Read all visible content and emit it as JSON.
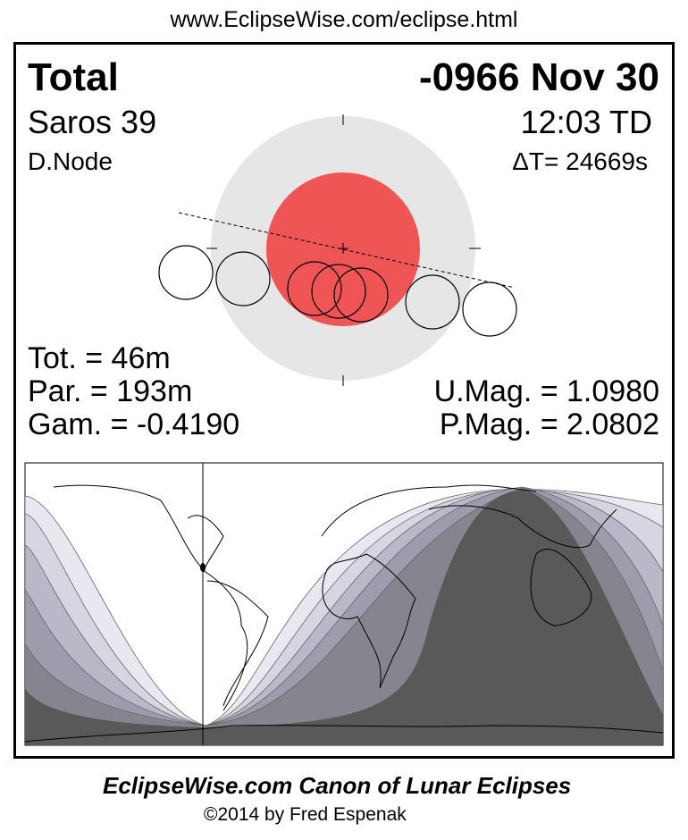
{
  "header": {
    "url": "www.EclipseWise.com/eclipse.html"
  },
  "eclipse": {
    "type": "Total",
    "date": "-0966 Nov 30",
    "saros": "Saros  39",
    "time": "12:03 TD",
    "node": "D.Node",
    "delta_t": "ΔT=  24669s",
    "totality": "Tot. =  46m",
    "partial": "Par. = 193m",
    "gamma": "Gam. = -0.4190",
    "umag": "U.Mag. = 1.0980",
    "pmag": "P.Mag. = 2.0802"
  },
  "colors": {
    "umbra": "#ef5555",
    "penumbra": "#e6e6e6",
    "night": "#595959"
  },
  "footer": {
    "title": "EclipseWise.com Canon of Lunar Eclipses",
    "copyright": "©2014 by Fred Espenak"
  }
}
